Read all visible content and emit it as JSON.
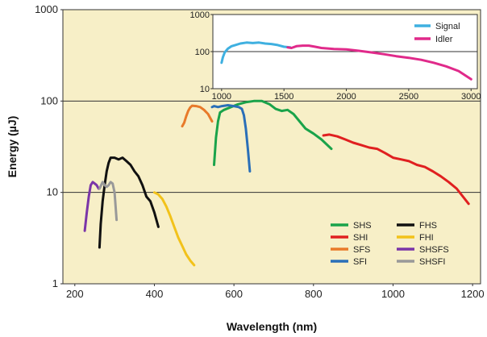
{
  "chart_data": [
    {
      "type": "line",
      "xlabel": "Wavelength (nm)",
      "ylabel": "Energy (µJ)",
      "xlim": [
        170,
        1220
      ],
      "ylim": [
        1,
        1000
      ],
      "yscale": "log",
      "xticks": [
        200,
        400,
        600,
        800,
        1000,
        1200
      ],
      "yticks": [
        1,
        10,
        100,
        1000
      ],
      "background": "#f7efc7",
      "grid": "horizontal lines at 10 and 100",
      "legend_position": "bottom-right",
      "series": [
        {
          "name": "SHS",
          "color": "#1aa34a",
          "x": [
            550,
            555,
            560,
            565,
            575,
            590,
            610,
            630,
            650,
            670,
            690,
            705,
            720,
            735,
            750,
            765,
            780,
            800,
            820,
            845
          ],
          "y": [
            20,
            40,
            60,
            75,
            80,
            85,
            92,
            97,
            100,
            100,
            92,
            82,
            78,
            80,
            72,
            60,
            50,
            44,
            38,
            30
          ]
        },
        {
          "name": "SHI",
          "color": "#e02020",
          "x": [
            825,
            840,
            860,
            880,
            900,
            920,
            940,
            960,
            980,
            1000,
            1020,
            1040,
            1060,
            1080,
            1100,
            1120,
            1140,
            1160,
            1190
          ],
          "y": [
            42,
            43,
            41,
            38,
            35,
            33,
            31,
            30,
            27,
            24,
            23,
            22,
            20,
            19,
            17,
            15,
            13,
            11,
            7.5
          ]
        },
        {
          "name": "SFS",
          "color": "#e87a2a",
          "x": [
            470,
            475,
            480,
            485,
            490,
            495,
            505,
            515,
            525,
            535,
            545
          ],
          "y": [
            53,
            58,
            68,
            78,
            85,
            89,
            88,
            86,
            80,
            72,
            60
          ]
        },
        {
          "name": "SFI",
          "color": "#2a6fb8",
          "x": [
            545,
            550,
            560,
            570,
            585,
            600,
            612,
            620,
            625,
            630,
            635,
            640
          ],
          "y": [
            86,
            88,
            86,
            88,
            90,
            88,
            86,
            82,
            70,
            50,
            30,
            17
          ]
        },
        {
          "name": "FHS",
          "color": "#111111",
          "x": [
            262,
            265,
            270,
            275,
            280,
            285,
            290,
            300,
            310,
            320,
            330,
            340,
            350,
            360,
            370,
            380,
            390,
            400,
            410
          ],
          "y": [
            2.5,
            4.5,
            8,
            12,
            17,
            21,
            24,
            24,
            23,
            24,
            22,
            20,
            17,
            15,
            12,
            9,
            8,
            6,
            4.2
          ]
        },
        {
          "name": "FHI",
          "color": "#f2c21a",
          "x": [
            400,
            410,
            420,
            430,
            440,
            450,
            460,
            470,
            480,
            490,
            500
          ],
          "y": [
            10,
            9.5,
            8.5,
            7,
            5.5,
            4.2,
            3.2,
            2.6,
            2.1,
            1.8,
            1.6
          ]
        },
        {
          "name": "SHSFS",
          "color": "#7a35a8",
          "x": [
            225,
            230,
            235,
            240,
            245,
            250,
            255,
            260
          ],
          "y": [
            3.8,
            6,
            9,
            12,
            13,
            12.5,
            12,
            11
          ]
        },
        {
          "name": "SHSFI",
          "color": "#999999",
          "x": [
            262,
            270,
            275,
            280,
            285,
            290,
            295,
            300,
            305
          ],
          "y": [
            11,
            13,
            12,
            11.5,
            12,
            13,
            12.5,
            10,
            5
          ]
        }
      ]
    },
    {
      "type": "line",
      "xlim": [
        930,
        3050
      ],
      "ylim": [
        10,
        1000
      ],
      "yscale": "log",
      "xticks": [
        1000,
        1500,
        2000,
        2500,
        3000
      ],
      "yticks": [
        10,
        100,
        1000
      ],
      "background": "#ffffff",
      "grid": "horizontal line at 100",
      "legend_position": "top-right",
      "series": [
        {
          "name": "Signal",
          "color": "#3fb0e0",
          "x": [
            1000,
            1010,
            1025,
            1050,
            1080,
            1110,
            1150,
            1200,
            1250,
            1300,
            1350,
            1400,
            1450,
            1500,
            1550
          ],
          "y": [
            50,
            70,
            95,
            120,
            140,
            150,
            165,
            175,
            170,
            175,
            165,
            160,
            150,
            135,
            130
          ]
        },
        {
          "name": "Idler",
          "color": "#e02a8a",
          "x": [
            1530,
            1560,
            1600,
            1650,
            1700,
            1750,
            1800,
            1900,
            2000,
            2100,
            2200,
            2300,
            2400,
            2500,
            2600,
            2700,
            2800,
            2900,
            3000
          ],
          "y": [
            130,
            125,
            140,
            145,
            145,
            135,
            125,
            118,
            115,
            105,
            95,
            85,
            75,
            68,
            60,
            50,
            40,
            30,
            18
          ]
        }
      ]
    }
  ]
}
